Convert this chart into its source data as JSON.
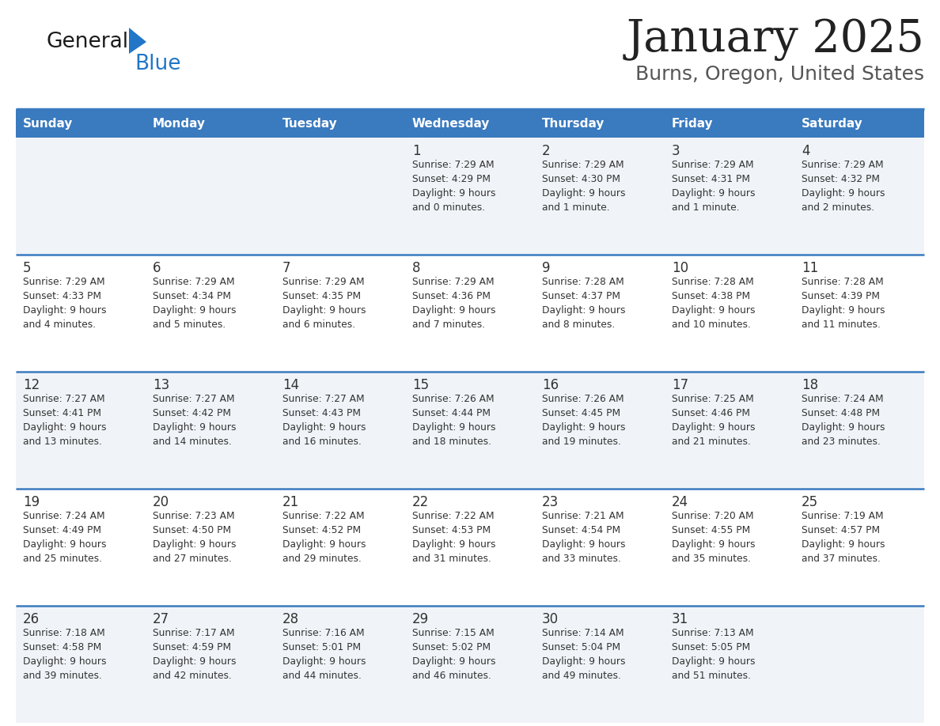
{
  "title": "January 2025",
  "subtitle": "Burns, Oregon, United States",
  "header_color": "#3a7abf",
  "header_text_color": "#ffffff",
  "cell_bg_even": "#f0f4f8",
  "cell_bg_odd": "#ffffff",
  "day_names": [
    "Sunday",
    "Monday",
    "Tuesday",
    "Wednesday",
    "Thursday",
    "Friday",
    "Saturday"
  ],
  "title_color": "#222222",
  "subtitle_color": "#555555",
  "text_color": "#333333",
  "line_color": "#3a7abf",
  "logo_general_color": "#1a1a1a",
  "logo_blue_color": "#2176c7",
  "logo_triangle_color": "#2176c7",
  "calendar": [
    [
      {
        "day": null,
        "sunrise": null,
        "sunset": null,
        "daylight": null
      },
      {
        "day": null,
        "sunrise": null,
        "sunset": null,
        "daylight": null
      },
      {
        "day": null,
        "sunrise": null,
        "sunset": null,
        "daylight": null
      },
      {
        "day": 1,
        "sunrise": "7:29 AM",
        "sunset": "4:29 PM",
        "daylight": "9 hours\nand 0 minutes."
      },
      {
        "day": 2,
        "sunrise": "7:29 AM",
        "sunset": "4:30 PM",
        "daylight": "9 hours\nand 1 minute."
      },
      {
        "day": 3,
        "sunrise": "7:29 AM",
        "sunset": "4:31 PM",
        "daylight": "9 hours\nand 1 minute."
      },
      {
        "day": 4,
        "sunrise": "7:29 AM",
        "sunset": "4:32 PM",
        "daylight": "9 hours\nand 2 minutes."
      }
    ],
    [
      {
        "day": 5,
        "sunrise": "7:29 AM",
        "sunset": "4:33 PM",
        "daylight": "9 hours\nand 4 minutes."
      },
      {
        "day": 6,
        "sunrise": "7:29 AM",
        "sunset": "4:34 PM",
        "daylight": "9 hours\nand 5 minutes."
      },
      {
        "day": 7,
        "sunrise": "7:29 AM",
        "sunset": "4:35 PM",
        "daylight": "9 hours\nand 6 minutes."
      },
      {
        "day": 8,
        "sunrise": "7:29 AM",
        "sunset": "4:36 PM",
        "daylight": "9 hours\nand 7 minutes."
      },
      {
        "day": 9,
        "sunrise": "7:28 AM",
        "sunset": "4:37 PM",
        "daylight": "9 hours\nand 8 minutes."
      },
      {
        "day": 10,
        "sunrise": "7:28 AM",
        "sunset": "4:38 PM",
        "daylight": "9 hours\nand 10 minutes."
      },
      {
        "day": 11,
        "sunrise": "7:28 AM",
        "sunset": "4:39 PM",
        "daylight": "9 hours\nand 11 minutes."
      }
    ],
    [
      {
        "day": 12,
        "sunrise": "7:27 AM",
        "sunset": "4:41 PM",
        "daylight": "9 hours\nand 13 minutes."
      },
      {
        "day": 13,
        "sunrise": "7:27 AM",
        "sunset": "4:42 PM",
        "daylight": "9 hours\nand 14 minutes."
      },
      {
        "day": 14,
        "sunrise": "7:27 AM",
        "sunset": "4:43 PM",
        "daylight": "9 hours\nand 16 minutes."
      },
      {
        "day": 15,
        "sunrise": "7:26 AM",
        "sunset": "4:44 PM",
        "daylight": "9 hours\nand 18 minutes."
      },
      {
        "day": 16,
        "sunrise": "7:26 AM",
        "sunset": "4:45 PM",
        "daylight": "9 hours\nand 19 minutes."
      },
      {
        "day": 17,
        "sunrise": "7:25 AM",
        "sunset": "4:46 PM",
        "daylight": "9 hours\nand 21 minutes."
      },
      {
        "day": 18,
        "sunrise": "7:24 AM",
        "sunset": "4:48 PM",
        "daylight": "9 hours\nand 23 minutes."
      }
    ],
    [
      {
        "day": 19,
        "sunrise": "7:24 AM",
        "sunset": "4:49 PM",
        "daylight": "9 hours\nand 25 minutes."
      },
      {
        "day": 20,
        "sunrise": "7:23 AM",
        "sunset": "4:50 PM",
        "daylight": "9 hours\nand 27 minutes."
      },
      {
        "day": 21,
        "sunrise": "7:22 AM",
        "sunset": "4:52 PM",
        "daylight": "9 hours\nand 29 minutes."
      },
      {
        "day": 22,
        "sunrise": "7:22 AM",
        "sunset": "4:53 PM",
        "daylight": "9 hours\nand 31 minutes."
      },
      {
        "day": 23,
        "sunrise": "7:21 AM",
        "sunset": "4:54 PM",
        "daylight": "9 hours\nand 33 minutes."
      },
      {
        "day": 24,
        "sunrise": "7:20 AM",
        "sunset": "4:55 PM",
        "daylight": "9 hours\nand 35 minutes."
      },
      {
        "day": 25,
        "sunrise": "7:19 AM",
        "sunset": "4:57 PM",
        "daylight": "9 hours\nand 37 minutes."
      }
    ],
    [
      {
        "day": 26,
        "sunrise": "7:18 AM",
        "sunset": "4:58 PM",
        "daylight": "9 hours\nand 39 minutes."
      },
      {
        "day": 27,
        "sunrise": "7:17 AM",
        "sunset": "4:59 PM",
        "daylight": "9 hours\nand 42 minutes."
      },
      {
        "day": 28,
        "sunrise": "7:16 AM",
        "sunset": "5:01 PM",
        "daylight": "9 hours\nand 44 minutes."
      },
      {
        "day": 29,
        "sunrise": "7:15 AM",
        "sunset": "5:02 PM",
        "daylight": "9 hours\nand 46 minutes."
      },
      {
        "day": 30,
        "sunrise": "7:14 AM",
        "sunset": "5:04 PM",
        "daylight": "9 hours\nand 49 minutes."
      },
      {
        "day": 31,
        "sunrise": "7:13 AM",
        "sunset": "5:05 PM",
        "daylight": "9 hours\nand 51 minutes."
      },
      {
        "day": null,
        "sunrise": null,
        "sunset": null,
        "daylight": null
      }
    ]
  ]
}
